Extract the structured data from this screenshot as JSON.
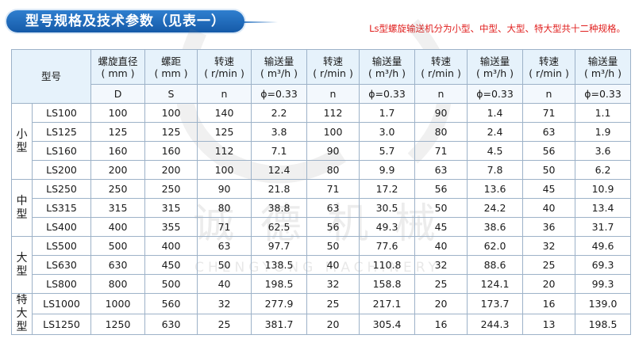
{
  "header": {
    "title": "型号规格及技术参数（见表一）",
    "note": "Ls型螺旋输送机分为小型、中型、大型、特大型共十二种规格。"
  },
  "watermark": {
    "cn": "诚 德 机 械",
    "en": "CHENGYONG MACHINERY"
  },
  "table": {
    "model_label": "型号",
    "headers": [
      {
        "top": "螺旋直径",
        "bottom": "( mm )",
        "symbol": "D"
      },
      {
        "top": "螺距",
        "bottom": "( mm )",
        "symbol": "S"
      },
      {
        "top": "转速",
        "bottom": "( r/min )",
        "symbol": "n"
      },
      {
        "top": "输送量",
        "bottom": "( m³/h )",
        "symbol": "ϕ=0.33"
      },
      {
        "top": "转速",
        "bottom": "( r/min )",
        "symbol": "n"
      },
      {
        "top": "输送量",
        "bottom": "( m³/h )",
        "symbol": "ϕ=0.33"
      },
      {
        "top": "转速",
        "bottom": "( r/min )",
        "symbol": "n"
      },
      {
        "top": "输送量",
        "bottom": "( m³/h )",
        "symbol": "ϕ=0.33"
      },
      {
        "top": "转速",
        "bottom": "( r/min )",
        "symbol": "n"
      },
      {
        "top": "输送量",
        "bottom": "( m³/h )",
        "symbol": "ϕ=0.33"
      }
    ],
    "groups": [
      {
        "label": "小型",
        "rows": [
          {
            "model": "LS100",
            "values": [
              "100",
              "100",
              "140",
              "2.2",
              "112",
              "1.7",
              "90",
              "1.4",
              "71",
              "1.1"
            ]
          },
          {
            "model": "LS125",
            "values": [
              "125",
              "125",
              "125",
              "3.8",
              "100",
              "3.0",
              "80",
              "2.4",
              "63",
              "1.9"
            ]
          },
          {
            "model": "LS160",
            "values": [
              "160",
              "160",
              "112",
              "7.1",
              "90",
              "5.7",
              "71",
              "4.5",
              "56",
              "3.6"
            ]
          },
          {
            "model": "LS200",
            "values": [
              "200",
              "200",
              "100",
              "12.4",
              "80",
              "9.9",
              "63",
              "7.8",
              "50",
              "6.2"
            ]
          }
        ]
      },
      {
        "label": "中型",
        "rows": [
          {
            "model": "LS250",
            "values": [
              "250",
              "250",
              "90",
              "21.8",
              "71",
              "17.2",
              "56",
              "13.6",
              "45",
              "10.9"
            ]
          },
          {
            "model": "LS315",
            "values": [
              "315",
              "315",
              "80",
              "38.8",
              "63",
              "30.5",
              "50",
              "24.2",
              "40",
              "13.4"
            ]
          },
          {
            "model": "LS400",
            "values": [
              "400",
              "355",
              "71",
              "62.5",
              "56",
              "49.3",
              "45",
              "38.6",
              "36",
              "31.7"
            ]
          }
        ]
      },
      {
        "label": "大型",
        "rows": [
          {
            "model": "LS500",
            "values": [
              "500",
              "400",
              "63",
              "97.7",
              "50",
              "77.6",
              "40",
              "62.0",
              "32",
              "49.6"
            ]
          },
          {
            "model": "LS630",
            "values": [
              "630",
              "450",
              "50",
              "138.5",
              "40",
              "110.8",
              "32",
              "88.6",
              "25",
              "69.3"
            ]
          },
          {
            "model": "LS800",
            "values": [
              "800",
              "500",
              "40",
              "198.5",
              "32",
              "158.8",
              "25",
              "124.1",
              "20",
              "99.3"
            ]
          }
        ]
      },
      {
        "label": "特大型",
        "rows": [
          {
            "model": "LS1000",
            "values": [
              "1000",
              "560",
              "32",
              "277.9",
              "25",
              "217.1",
              "20",
              "173.7",
              "16",
              "139.0"
            ]
          },
          {
            "model": "LS1250",
            "values": [
              "1250",
              "630",
              "25",
              "381.7",
              "20",
              "305.4",
              "16",
              "244.3",
              "13",
              "198.5"
            ]
          }
        ]
      }
    ]
  }
}
